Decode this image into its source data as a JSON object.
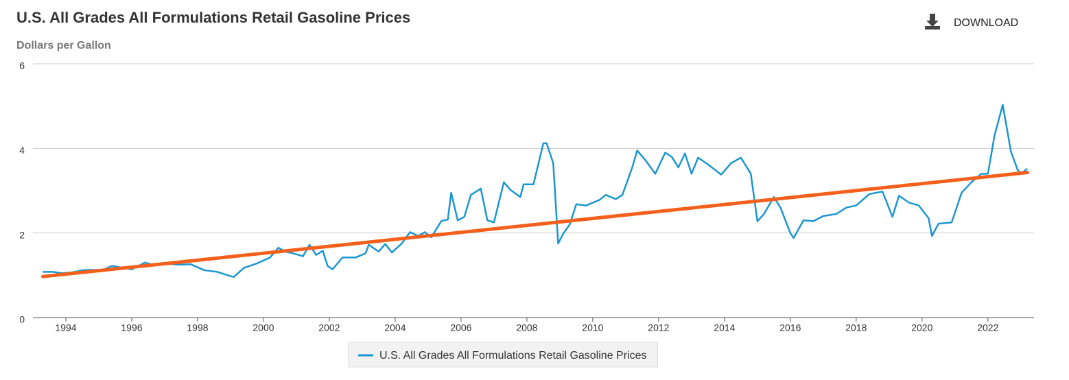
{
  "chart_data": {
    "type": "line",
    "title": "U.S. All Grades All Formulations Retail Gasoline Prices",
    "subtitle": "Dollars per Gallon",
    "download_label": "DOWNLOAD",
    "xlim": [
      1993.0,
      2023.4
    ],
    "xticks": [
      1994,
      1996,
      1998,
      2000,
      2002,
      2004,
      2006,
      2008,
      2010,
      2012,
      2014,
      2016,
      2018,
      2020,
      2022
    ],
    "ylim": [
      0,
      6
    ],
    "yticks": [
      0,
      2,
      4,
      6
    ],
    "grid": true,
    "legend": "bottom",
    "x": [
      1993.3,
      1993.6,
      1993.9,
      1994.2,
      1994.5,
      1994.8,
      1995.1,
      1995.4,
      1995.7,
      1996.0,
      1996.4,
      1996.7,
      1997.0,
      1997.4,
      1997.8,
      1998.2,
      1998.6,
      1999.0,
      1999.1,
      1999.4,
      1999.8,
      2000.2,
      2000.45,
      2000.7,
      2000.9,
      2001.2,
      2001.4,
      2001.6,
      2001.8,
      2001.95,
      2002.1,
      2002.4,
      2002.8,
      2003.1,
      2003.2,
      2003.5,
      2003.7,
      2003.9,
      2004.2,
      2004.45,
      2004.7,
      2004.9,
      2005.1,
      2005.4,
      2005.6,
      2005.7,
      2005.9,
      2006.1,
      2006.3,
      2006.6,
      2006.8,
      2007.0,
      2007.3,
      2007.5,
      2007.8,
      2007.9,
      2008.2,
      2008.5,
      2008.6,
      2008.8,
      2008.95,
      2009.1,
      2009.3,
      2009.5,
      2009.8,
      2010.2,
      2010.4,
      2010.7,
      2010.9,
      2011.2,
      2011.35,
      2011.6,
      2011.9,
      2012.2,
      2012.4,
      2012.6,
      2012.8,
      2013.0,
      2013.2,
      2013.5,
      2013.9,
      2014.2,
      2014.5,
      2014.8,
      2015.0,
      2015.2,
      2015.5,
      2015.7,
      2016.0,
      2016.1,
      2016.4,
      2016.7,
      2017.0,
      2017.4,
      2017.7,
      2018.0,
      2018.4,
      2018.8,
      2019.1,
      2019.3,
      2019.6,
      2019.9,
      2020.2,
      2020.3,
      2020.5,
      2020.9,
      2021.2,
      2021.5,
      2021.8,
      2022.0,
      2022.2,
      2022.45,
      2022.7,
      2022.9,
      2023.0,
      2023.2
    ],
    "series": [
      {
        "name": "U.S. All Grades All Formulations Retail Gasoline Prices",
        "color": "#1b96d0",
        "values": [
          1.08,
          1.08,
          1.05,
          1.07,
          1.12,
          1.13,
          1.12,
          1.22,
          1.18,
          1.14,
          1.3,
          1.24,
          1.28,
          1.25,
          1.26,
          1.12,
          1.08,
          0.98,
          0.96,
          1.17,
          1.28,
          1.42,
          1.65,
          1.55,
          1.52,
          1.45,
          1.72,
          1.48,
          1.58,
          1.22,
          1.14,
          1.42,
          1.42,
          1.52,
          1.72,
          1.56,
          1.74,
          1.54,
          1.75,
          2.02,
          1.93,
          2.02,
          1.9,
          2.28,
          2.32,
          2.95,
          2.3,
          2.38,
          2.9,
          3.05,
          2.3,
          2.25,
          3.2,
          3.02,
          2.85,
          3.15,
          3.15,
          4.12,
          4.12,
          3.65,
          1.75,
          1.98,
          2.2,
          2.68,
          2.65,
          2.78,
          2.9,
          2.8,
          2.9,
          3.55,
          3.95,
          3.72,
          3.4,
          3.9,
          3.8,
          3.55,
          3.88,
          3.4,
          3.78,
          3.62,
          3.38,
          3.65,
          3.78,
          3.4,
          2.28,
          2.45,
          2.85,
          2.6,
          2.0,
          1.88,
          2.3,
          2.28,
          2.4,
          2.45,
          2.6,
          2.65,
          2.92,
          2.98,
          2.38,
          2.88,
          2.72,
          2.65,
          2.35,
          1.93,
          2.22,
          2.25,
          2.95,
          3.2,
          3.4,
          3.4,
          4.3,
          5.03,
          3.92,
          3.5,
          3.4,
          3.52
        ]
      }
    ],
    "trend_line": {
      "color": "#f4601c",
      "x": [
        1993.3,
        2023.2
      ],
      "values": [
        0.97,
        3.43
      ]
    }
  }
}
